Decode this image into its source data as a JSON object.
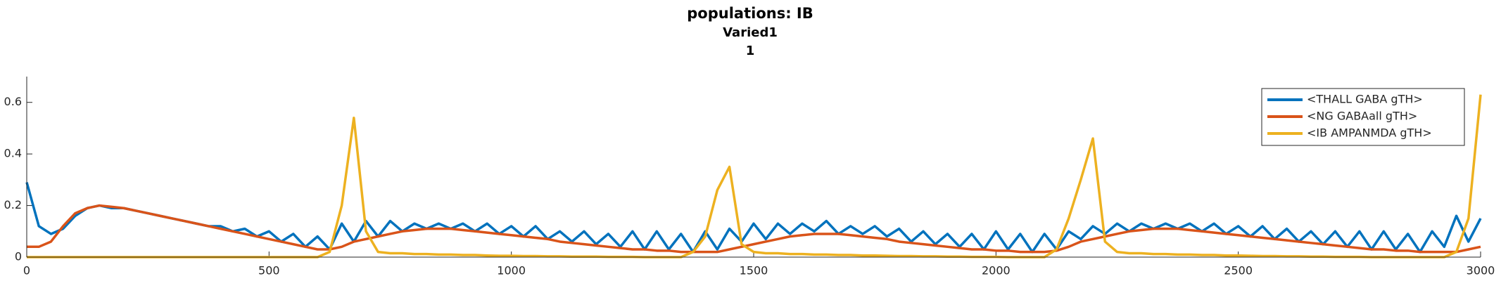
{
  "chart_data": {
    "type": "line",
    "title": "populations: IB",
    "subtitle": [
      "Varied1",
      "1"
    ],
    "x": [
      0,
      25,
      50,
      75,
      100,
      125,
      150,
      175,
      200,
      225,
      250,
      275,
      300,
      325,
      350,
      375,
      400,
      425,
      450,
      475,
      500,
      525,
      550,
      575,
      600,
      625,
      650,
      675,
      700,
      725,
      750,
      775,
      800,
      825,
      850,
      875,
      900,
      925,
      950,
      975,
      1000,
      1025,
      1050,
      1075,
      1100,
      1125,
      1150,
      1175,
      1200,
      1225,
      1250,
      1275,
      1300,
      1325,
      1350,
      1375,
      1400,
      1425,
      1450,
      1475,
      1500,
      1525,
      1550,
      1575,
      1600,
      1625,
      1650,
      1675,
      1700,
      1725,
      1750,
      1775,
      1800,
      1825,
      1850,
      1875,
      1900,
      1925,
      1950,
      1975,
      2000,
      2025,
      2050,
      2075,
      2100,
      2125,
      2150,
      2175,
      2200,
      2225,
      2250,
      2275,
      2300,
      2325,
      2350,
      2375,
      2400,
      2425,
      2450,
      2475,
      2500,
      2525,
      2550,
      2575,
      2600,
      2625,
      2650,
      2675,
      2700,
      2725,
      2750,
      2775,
      2800,
      2825,
      2850,
      2875,
      2900,
      2925,
      2950,
      2975,
      3000
    ],
    "series": [
      {
        "name": "<THALL GABA gTH>",
        "color": "#0072bd",
        "values": [
          0.29,
          0.12,
          0.09,
          0.11,
          0.16,
          0.19,
          0.2,
          0.19,
          0.19,
          0.18,
          0.17,
          0.16,
          0.15,
          0.14,
          0.13,
          0.12,
          0.12,
          0.1,
          0.11,
          0.08,
          0.1,
          0.06,
          0.09,
          0.04,
          0.08,
          0.03,
          0.13,
          0.06,
          0.14,
          0.08,
          0.14,
          0.1,
          0.13,
          0.11,
          0.13,
          0.11,
          0.13,
          0.1,
          0.13,
          0.09,
          0.12,
          0.08,
          0.12,
          0.07,
          0.1,
          0.06,
          0.1,
          0.05,
          0.09,
          0.04,
          0.1,
          0.03,
          0.1,
          0.03,
          0.09,
          0.02,
          0.1,
          0.03,
          0.11,
          0.06,
          0.13,
          0.07,
          0.13,
          0.09,
          0.13,
          0.1,
          0.14,
          0.09,
          0.12,
          0.09,
          0.12,
          0.08,
          0.11,
          0.06,
          0.1,
          0.05,
          0.09,
          0.04,
          0.09,
          0.03,
          0.1,
          0.03,
          0.09,
          0.02,
          0.09,
          0.03,
          0.1,
          0.07,
          0.12,
          0.09,
          0.13,
          0.1,
          0.13,
          0.11,
          0.13,
          0.11,
          0.13,
          0.1,
          0.13,
          0.09,
          0.12,
          0.08,
          0.12,
          0.07,
          0.11,
          0.06,
          0.1,
          0.05,
          0.1,
          0.04,
          0.1,
          0.03,
          0.1,
          0.03,
          0.09,
          0.02,
          0.1,
          0.04,
          0.16,
          0.06,
          0.15
        ]
      },
      {
        "name": "<NG GABAall gTH>",
        "color": "#d95319",
        "values": [
          0.04,
          0.04,
          0.06,
          0.12,
          0.17,
          0.19,
          0.2,
          0.195,
          0.19,
          0.18,
          0.17,
          0.16,
          0.15,
          0.14,
          0.13,
          0.12,
          0.11,
          0.1,
          0.09,
          0.08,
          0.07,
          0.06,
          0.05,
          0.04,
          0.03,
          0.03,
          0.04,
          0.06,
          0.07,
          0.08,
          0.09,
          0.1,
          0.105,
          0.11,
          0.11,
          0.11,
          0.105,
          0.1,
          0.095,
          0.09,
          0.085,
          0.08,
          0.075,
          0.07,
          0.06,
          0.055,
          0.05,
          0.045,
          0.04,
          0.035,
          0.03,
          0.03,
          0.025,
          0.025,
          0.02,
          0.02,
          0.02,
          0.02,
          0.03,
          0.04,
          0.05,
          0.06,
          0.07,
          0.08,
          0.085,
          0.09,
          0.09,
          0.09,
          0.085,
          0.08,
          0.075,
          0.07,
          0.06,
          0.055,
          0.05,
          0.045,
          0.04,
          0.035,
          0.03,
          0.03,
          0.025,
          0.025,
          0.02,
          0.02,
          0.02,
          0.025,
          0.04,
          0.06,
          0.07,
          0.08,
          0.09,
          0.1,
          0.105,
          0.11,
          0.11,
          0.11,
          0.105,
          0.1,
          0.095,
          0.09,
          0.085,
          0.08,
          0.075,
          0.07,
          0.065,
          0.06,
          0.055,
          0.05,
          0.045,
          0.04,
          0.035,
          0.03,
          0.03,
          0.025,
          0.025,
          0.02,
          0.02,
          0.02,
          0.02,
          0.03,
          0.04
        ]
      },
      {
        "name": "<IB AMPANMDA gTH>",
        "color": "#edb120",
        "values": [
          0,
          0,
          0,
          0,
          0,
          0,
          0,
          0,
          0,
          0,
          0,
          0,
          0,
          0,
          0,
          0,
          0,
          0,
          0,
          0,
          0,
          0,
          0,
          0,
          0,
          0.02,
          0.2,
          0.54,
          0.1,
          0.02,
          0.015,
          0.015,
          0.012,
          0.012,
          0.01,
          0.01,
          0.008,
          0.008,
          0.006,
          0.005,
          0.005,
          0.004,
          0.004,
          0.003,
          0.003,
          0.002,
          0.002,
          0.002,
          0.001,
          0.001,
          0.001,
          0,
          0,
          0,
          0,
          0.02,
          0.08,
          0.26,
          0.35,
          0.05,
          0.02,
          0.015,
          0.015,
          0.012,
          0.012,
          0.01,
          0.01,
          0.008,
          0.008,
          0.006,
          0.006,
          0.005,
          0.004,
          0.004,
          0.003,
          0.003,
          0.002,
          0.002,
          0.001,
          0.001,
          0.001,
          0,
          0,
          0,
          0,
          0.03,
          0.15,
          0.3,
          0.46,
          0.06,
          0.02,
          0.015,
          0.015,
          0.012,
          0.012,
          0.01,
          0.01,
          0.008,
          0.008,
          0.006,
          0.006,
          0.005,
          0.004,
          0.004,
          0.003,
          0.003,
          0.002,
          0.002,
          0.001,
          0.001,
          0.001,
          0,
          0,
          0,
          0,
          0,
          0,
          0,
          0.02,
          0.15,
          0.63
        ]
      }
    ],
    "xlim": [
      0,
      3000
    ],
    "xticks": [
      0,
      500,
      1000,
      1500,
      2000,
      2500,
      3000
    ],
    "ylim": [
      0,
      0.7
    ],
    "yticks": [
      0,
      0.2,
      0.4,
      0.6
    ],
    "grid": false,
    "legend": "northeast"
  }
}
